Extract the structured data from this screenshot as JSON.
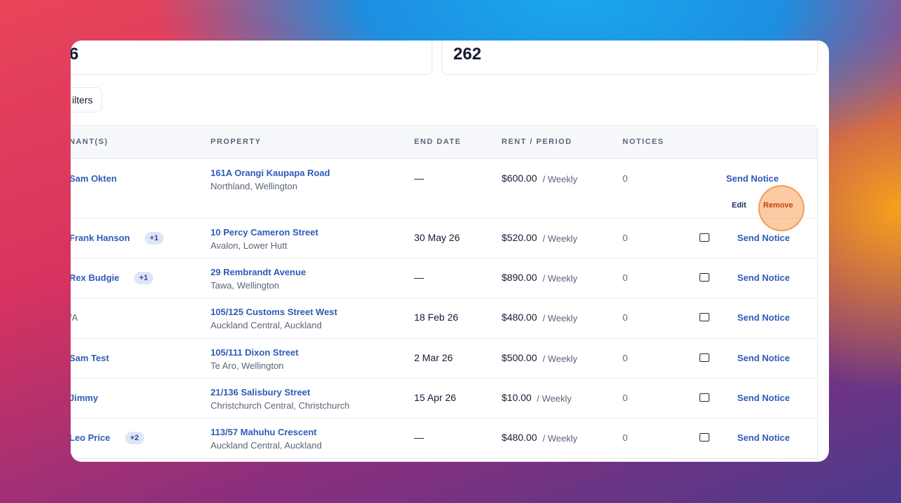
{
  "stats": [
    "6",
    "262"
  ],
  "filters": "ilters",
  "table": {
    "headers": [
      "NANT(S)",
      "PROPERTY",
      "END DATE",
      "RENT / PERIOD",
      "NOTICES"
    ],
    "rows": [
      {
        "tenant": "Sam Okten",
        "property": "161A Orangi Kaupapa Road",
        "location": "Northland, Wellington",
        "end_date": "—",
        "rent": "$600.00",
        "period": "/ Weekly",
        "notices": 0,
        "action": "Send Notice",
        "edit": "Edit",
        "remove": "Remove"
      },
      {
        "tenant": "Frank Hanson",
        "badge": "+1",
        "property": "10 Percy Cameron Street",
        "location": "Avalon, Lower Hutt",
        "end_date": "30 May 26",
        "rent": "$520.00",
        "period": "/ Weekly",
        "notices": 0,
        "action": "Send Notice"
      },
      {
        "tenant": "Rex Budgie",
        "badge": "+1",
        "property": "29 Rembrandt Avenue",
        "location": "Tawa, Wellington",
        "end_date": "—",
        "rent": "$890.00",
        "period": "/ Weekly",
        "notices": 0,
        "action": "Send Notice"
      },
      {
        "tenant": "/A",
        "property": "105/125 Customs Street West",
        "location": "Auckland Central, Auckland",
        "end_date": "18 Feb 26",
        "rent": "$480.00",
        "period": "/ Weekly",
        "notices": 0,
        "action": "Send Notice"
      },
      {
        "tenant": "Sam Test",
        "property": "105/111 Dixon Street",
        "location": "Te Aro, Wellington",
        "end_date": "2 Mar 26",
        "rent": "$500.00",
        "period": "/ Weekly",
        "notices": 0,
        "action": "Send Notice"
      },
      {
        "tenant": "Jimmy",
        "property": "21/136 Salisbury Street",
        "location": "Christchurch Central, Christchurch",
        "end_date": "15 Apr 26",
        "rent": "$10.00",
        "period": "/ Weekly",
        "notices": 0,
        "action": "Send Notice"
      },
      {
        "tenant": "Leo Price",
        "badge": "+2",
        "property": "113/57 Mahuhu Crescent",
        "location": "Auckland Central, Auckland",
        "end_date": "—",
        "rent": "$480.00",
        "period": "/ Weekly",
        "notices": 0,
        "action": "Send Notice"
      }
    ]
  }
}
